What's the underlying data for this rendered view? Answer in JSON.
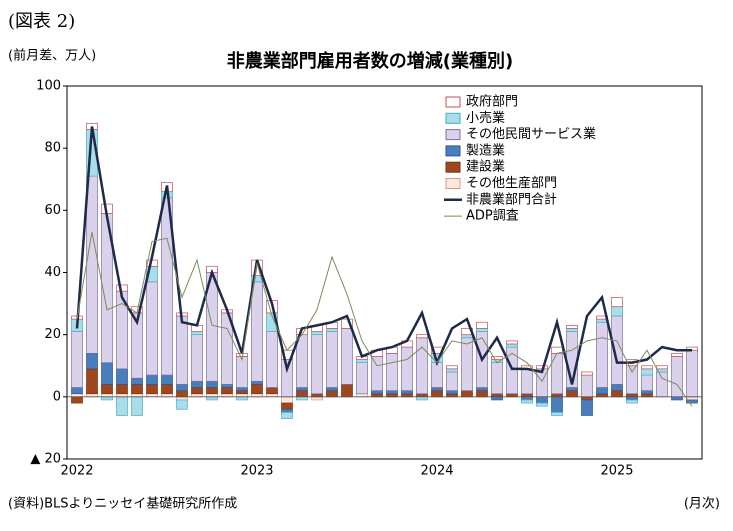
{
  "header": {
    "figure_label": "(図表 2)",
    "unit": "(前月差、万人)"
  },
  "footer": {
    "source": "(資料)BLSよりニッセイ基礎研究所作成",
    "x_unit": "(月次)"
  },
  "chart_data": {
    "type": "bar",
    "stacked": true,
    "title": "非農業部門雇用者数の増減(業種別)",
    "categories": [
      "2022",
      null,
      null,
      null,
      null,
      null,
      null,
      null,
      null,
      null,
      null,
      null,
      "2023",
      null,
      null,
      null,
      null,
      null,
      null,
      null,
      null,
      null,
      null,
      null,
      "2024",
      null,
      null,
      null,
      null,
      null,
      null,
      null,
      null,
      null,
      null,
      null,
      "2025",
      null,
      null,
      null,
      null,
      null
    ],
    "ylim": [
      -20,
      100
    ],
    "yticks": [
      {
        "value": -20,
        "label": "▲ 20"
      },
      0,
      20,
      40,
      60,
      80,
      100
    ],
    "series": [
      {
        "name": "政府部門",
        "type": "bar",
        "color": "#ffffff",
        "stroke": "#c0504d",
        "values": [
          1,
          2,
          3,
          2,
          2,
          2,
          3,
          1,
          2,
          2,
          1,
          1,
          5,
          4,
          3,
          2,
          2,
          2,
          3,
          1,
          2,
          2,
          2,
          1,
          2,
          1,
          2,
          2,
          1,
          1,
          1,
          1,
          2,
          1,
          1,
          1,
          3,
          2,
          1,
          1,
          1,
          1
        ]
      },
      {
        "name": "小売業",
        "type": "bar",
        "color": "#a9dde9",
        "stroke": "#4bacc6",
        "values": [
          4,
          15,
          -1,
          -6,
          -6,
          5,
          2,
          -3,
          1,
          -1,
          0,
          -1,
          2,
          6,
          -2,
          -1,
          1,
          1,
          0,
          1,
          0,
          0,
          0,
          -1,
          3,
          1,
          1,
          1,
          1,
          1,
          -1,
          -1,
          -1,
          1,
          0,
          1,
          3,
          -1,
          2,
          1,
          0,
          0
        ]
      },
      {
        "name": "その他民間サービス業",
        "type": "bar",
        "color": "#d9d2ea",
        "stroke": "#7f6fa8",
        "values": [
          18,
          57,
          48,
          25,
          21,
          30,
          57,
          22,
          15,
          35,
          23,
          10,
          32,
          18,
          12,
          17,
          19,
          18,
          18,
          10,
          11,
          12,
          14,
          18,
          8,
          6,
          17,
          18,
          10,
          15,
          8,
          9,
          13,
          18,
          7,
          21,
          22,
          9,
          5,
          8,
          13,
          15
        ]
      },
      {
        "name": "製造業",
        "type": "bar",
        "color": "#4a7ebb",
        "stroke": "#2f5597",
        "values": [
          2,
          5,
          7,
          5,
          2,
          3,
          3,
          2,
          2,
          2,
          1,
          1,
          1,
          0,
          -1,
          1,
          0,
          1,
          0,
          0,
          1,
          1,
          1,
          0,
          1,
          1,
          0,
          1,
          -1,
          0,
          -1,
          -2,
          -5,
          1,
          -5,
          2,
          2,
          -1,
          1,
          0,
          -1,
          -1
        ]
      },
      {
        "name": "建設業",
        "type": "bar",
        "color": "#a0461c",
        "stroke": "#7a3312",
        "values": [
          -2,
          8,
          3,
          3,
          3,
          3,
          3,
          2,
          2,
          2,
          2,
          1,
          3,
          2,
          -2,
          2,
          1,
          2,
          4,
          0,
          1,
          1,
          1,
          1,
          2,
          1,
          2,
          2,
          1,
          1,
          1,
          0,
          1,
          2,
          -1,
          1,
          2,
          1,
          1,
          0,
          0,
          0
        ]
      },
      {
        "name": "その他生産部門",
        "type": "bar",
        "color": "#fde9d9",
        "stroke": "#d99694",
        "values": [
          1,
          1,
          1,
          1,
          1,
          1,
          1,
          -1,
          1,
          1,
          1,
          1,
          1,
          1,
          -2,
          0,
          -1,
          0,
          0,
          1,
          0,
          0,
          0,
          0,
          0,
          0,
          0,
          0,
          0,
          0,
          0,
          0,
          0,
          0,
          0,
          0,
          0,
          0,
          0,
          0,
          0,
          -1
        ]
      },
      {
        "name": "非農業部門合計",
        "type": "line",
        "color": "#1f2a4a",
        "width": 2.5,
        "values": [
          22,
          87,
          58,
          32,
          24,
          45,
          68,
          24,
          23,
          40,
          28,
          14,
          44,
          30,
          9,
          22,
          23,
          24,
          26,
          13,
          15,
          16,
          18,
          27,
          11,
          22,
          25,
          12,
          19,
          9,
          9,
          8,
          24,
          4,
          26,
          32,
          11,
          11,
          12,
          16,
          15,
          15
        ]
      },
      {
        "name": "ADP調査",
        "type": "line",
        "color": "#7f8a5a",
        "width": 1,
        "values": [
          25,
          53,
          28,
          30,
          27,
          50,
          51,
          32,
          44,
          23,
          22,
          12,
          43,
          26,
          15,
          20,
          28,
          45,
          33,
          18,
          10,
          11,
          12,
          16,
          11,
          18,
          17,
          19,
          11,
          14,
          11,
          5,
          14,
          15,
          18,
          19,
          18,
          8,
          15,
          6,
          4,
          -3
        ]
      }
    ]
  }
}
